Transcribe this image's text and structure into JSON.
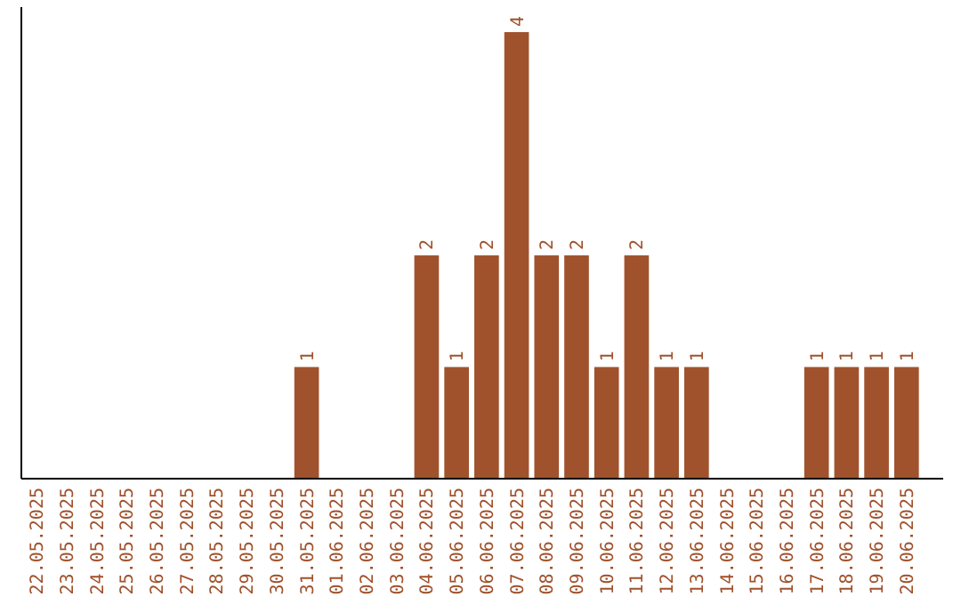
{
  "chart_data": {
    "type": "bar",
    "categories": [
      "22.05.2025",
      "23.05.2025",
      "24.05.2025",
      "25.05.2025",
      "26.05.2025",
      "27.05.2025",
      "28.05.2025",
      "29.05.2025",
      "30.05.2025",
      "31.05.2025",
      "01.06.2025",
      "02.06.2025",
      "03.06.2025",
      "04.06.2025",
      "05.06.2025",
      "06.06.2025",
      "07.06.2025",
      "08.06.2025",
      "09.06.2025",
      "10.06.2025",
      "11.06.2025",
      "12.06.2025",
      "13.06.2025",
      "14.06.2025",
      "15.06.2025",
      "16.06.2025",
      "17.06.2025",
      "18.06.2025",
      "19.06.2025",
      "20.06.2025"
    ],
    "values": [
      0,
      0,
      0,
      0,
      0,
      0,
      0,
      0,
      0,
      1,
      0,
      0,
      0,
      2,
      1,
      2,
      4,
      2,
      2,
      1,
      2,
      1,
      1,
      0,
      0,
      0,
      1,
      1,
      1,
      1
    ],
    "value_labels": [
      null,
      null,
      null,
      null,
      null,
      null,
      null,
      null,
      null,
      "1",
      null,
      null,
      null,
      "2",
      "1",
      "2",
      "4",
      "2",
      "2",
      "1",
      "2",
      "1",
      "1",
      null,
      null,
      null,
      "1",
      "1",
      "1",
      "1"
    ],
    "color": "#a0522d",
    "tick_labels": "x",
    "grid": false
  }
}
